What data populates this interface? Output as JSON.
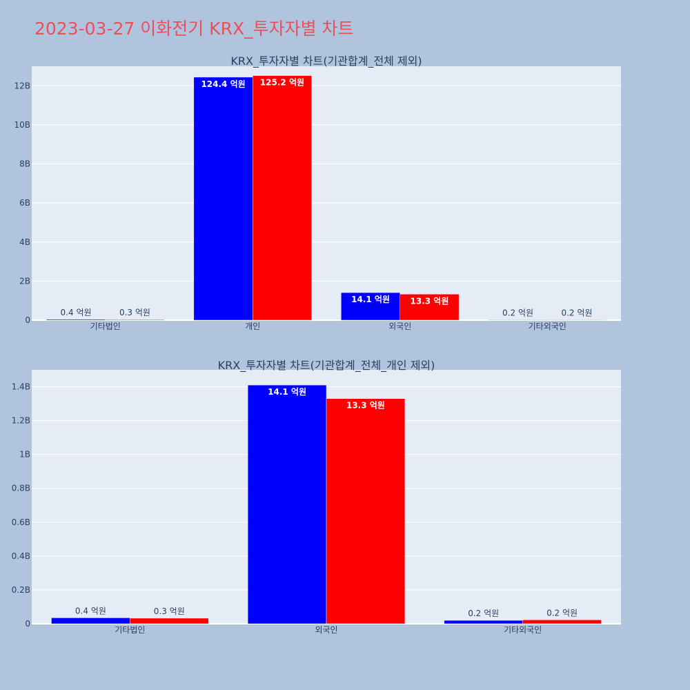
{
  "page": {
    "title": "2023-03-27 이화전기 KRX_투자자별 차트",
    "title_color": "#e8505b",
    "background": "#b0c4de",
    "plot_background": "#e5ecf6"
  },
  "chart_data": [
    {
      "type": "bar",
      "title": "KRX_투자자별 차트(기관합계_전체 제외)",
      "categories": [
        "기타법인",
        "개인",
        "외국인",
        "기타외국인"
      ],
      "series": [
        {
          "color": "#0000ff",
          "values": [
            40000000,
            12440000000,
            1410000000,
            20000000
          ],
          "labels": [
            "0.4 억원",
            "124.4 억원",
            "14.1 억원",
            "0.2 억원"
          ]
        },
        {
          "color": "#ff0000",
          "values": [
            30000000,
            12520000000,
            1330000000,
            20000000
          ],
          "labels": [
            "0.3 억원",
            "125.2 억원",
            "13.3 억원",
            "0.2 억원"
          ]
        }
      ],
      "ylim": [
        0,
        13000000000
      ],
      "yticks": [
        0,
        2000000000,
        4000000000,
        6000000000,
        8000000000,
        10000000000,
        12000000000
      ],
      "ytick_labels": [
        "0",
        "2B",
        "4B",
        "6B",
        "8B",
        "10B",
        "12B"
      ],
      "grid": true,
      "xlabel": "",
      "ylabel": ""
    },
    {
      "type": "bar",
      "title": "KRX_투자자별 차트(기관합계_전체_개인 제외)",
      "categories": [
        "기타법인",
        "외국인",
        "기타외국인"
      ],
      "series": [
        {
          "color": "#0000ff",
          "values": [
            35000000,
            1410000000,
            20000000
          ],
          "labels": [
            "0.4 억원",
            "14.1 억원",
            "0.2 억원"
          ]
        },
        {
          "color": "#ff0000",
          "values": [
            33000000,
            1330000000,
            23000000
          ],
          "labels": [
            "0.3 억원",
            "13.3 억원",
            "0.2 억원"
          ]
        }
      ],
      "ylim": [
        0,
        1500000000
      ],
      "yticks": [
        0,
        200000000,
        400000000,
        600000000,
        800000000,
        1000000000,
        1200000000,
        1400000000
      ],
      "ytick_labels": [
        "0",
        "0.2B",
        "0.4B",
        "0.6B",
        "0.8B",
        "1B",
        "1.2B",
        "1.4B"
      ],
      "grid": true,
      "xlabel": "",
      "ylabel": ""
    }
  ]
}
